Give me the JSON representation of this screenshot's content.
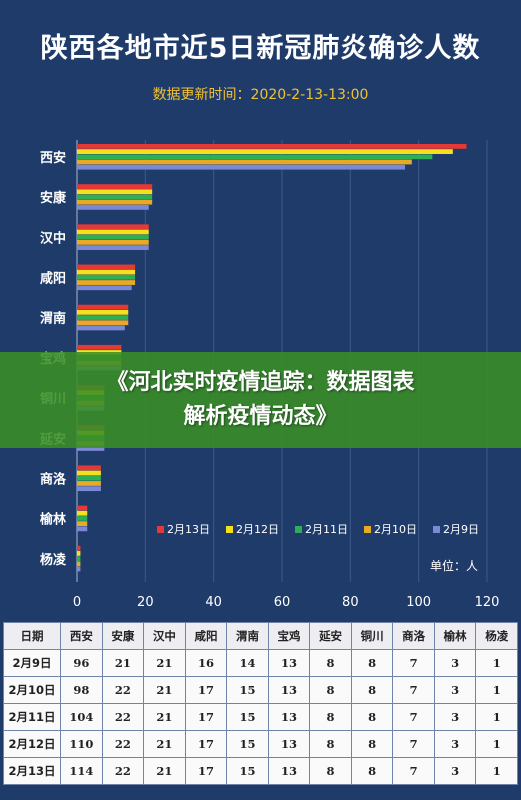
{
  "page": {
    "title": "陕西各地市近5日新冠肺炎确诊人数",
    "subtitle": "数据更新时间：2020-2-13-13:00",
    "banner_line1": "《河北实时疫情追踪：数据图表",
    "banner_line2": "解析疫情动态》",
    "unit_label": "单位：人"
  },
  "colors": {
    "background": "#1f3b6a",
    "grid": "#3c5a8a",
    "subtitle": "#f1c232",
    "2月13日": "#e53935",
    "2月12日": "#f4e01c",
    "2月11日": "#2eae55",
    "2月10日": "#e8a927",
    "2月9日": "#7b88d6"
  },
  "chart_data": {
    "type": "bar",
    "orientation": "horizontal",
    "title": "陕西各地市近5日新冠肺炎确诊人数",
    "subtitle": "数据更新时间：2020-2-13-13:00",
    "categories": [
      "西安",
      "安康",
      "汉中",
      "咸阳",
      "渭南",
      "宝鸡",
      "铜川",
      "延安",
      "商洛",
      "榆林",
      "杨凌"
    ],
    "series": [
      {
        "name": "2月13日",
        "values": [
          114,
          22,
          21,
          17,
          15,
          13,
          8,
          8,
          7,
          3,
          1
        ]
      },
      {
        "name": "2月12日",
        "values": [
          110,
          22,
          21,
          17,
          15,
          13,
          8,
          8,
          7,
          3,
          1
        ]
      },
      {
        "name": "2月11日",
        "values": [
          104,
          22,
          21,
          17,
          15,
          13,
          8,
          8,
          7,
          3,
          1
        ]
      },
      {
        "name": "2月10日",
        "values": [
          98,
          22,
          21,
          17,
          15,
          13,
          8,
          8,
          7,
          3,
          1
        ]
      },
      {
        "name": "2月9日",
        "values": [
          96,
          21,
          21,
          16,
          14,
          13,
          8,
          8,
          7,
          3,
          1
        ]
      }
    ],
    "xlim": [
      0,
      120
    ],
    "xticks": [
      0,
      20,
      40,
      60,
      80,
      100,
      120
    ],
    "grid": true,
    "legend": "bottom-right",
    "unit": "单位：人"
  },
  "table": {
    "headers": [
      "日期",
      "西安",
      "安康",
      "汉中",
      "咸阳",
      "渭南",
      "宝鸡",
      "延安",
      "铜川",
      "商洛",
      "榆林",
      "杨凌"
    ],
    "rows": [
      [
        "2月9日",
        "96",
        "21",
        "21",
        "16",
        "14",
        "13",
        "8",
        "8",
        "7",
        "3",
        "1"
      ],
      [
        "2月10日",
        "98",
        "22",
        "21",
        "17",
        "15",
        "13",
        "8",
        "8",
        "7",
        "3",
        "1"
      ],
      [
        "2月11日",
        "104",
        "22",
        "21",
        "17",
        "15",
        "13",
        "8",
        "8",
        "7",
        "3",
        "1"
      ],
      [
        "2月12日",
        "110",
        "22",
        "21",
        "17",
        "15",
        "13",
        "8",
        "8",
        "7",
        "3",
        "1"
      ],
      [
        "2月13日",
        "114",
        "22",
        "21",
        "17",
        "15",
        "13",
        "8",
        "8",
        "7",
        "3",
        "1"
      ]
    ]
  }
}
